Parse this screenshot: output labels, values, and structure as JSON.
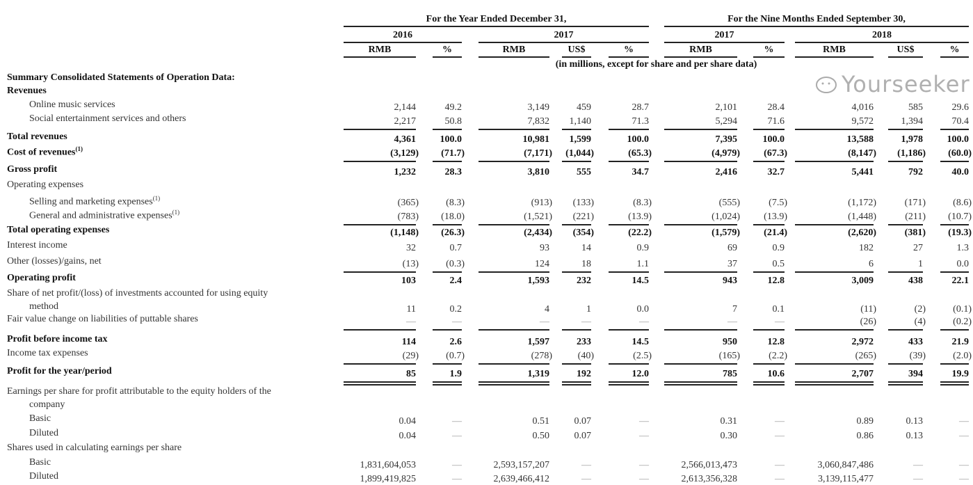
{
  "header": {
    "period_year": "For the Year Ended December 31,",
    "period_nine": "For the Nine Months Ended September 30,",
    "years": [
      "2016",
      "2017",
      "2017",
      "2018"
    ],
    "columns": [
      "RMB",
      "%",
      "RMB",
      "US$",
      "%",
      "RMB",
      "%",
      "RMB",
      "US$",
      "%"
    ],
    "unit_note": "(in millions, except for share and per share data)"
  },
  "rows": [
    {
      "label": "Summary Consolidated Statements of Operation Data:",
      "bold": true,
      "indent": 0,
      "values": []
    },
    {
      "label": "Revenues",
      "bold": true,
      "indent": 0,
      "values": []
    },
    {
      "label": "Online music services",
      "bold": false,
      "indent": 1,
      "values": [
        "2,144",
        "49.2",
        "3,149",
        "459",
        "28.7",
        "2,101",
        "28.4",
        "4,016",
        "585",
        "29.6"
      ]
    },
    {
      "label": "Social entertainment services and others",
      "bold": false,
      "indent": 1,
      "underline": "single",
      "values": [
        "2,217",
        "50.8",
        "7,832",
        "1,140",
        "71.3",
        "5,294",
        "71.6",
        "9,572",
        "1,394",
        "70.4"
      ]
    },
    {
      "label": "Total revenues",
      "bold": true,
      "indent": 0,
      "values": [
        "4,361",
        "100.0",
        "10,981",
        "1,599",
        "100.0",
        "7,395",
        "100.0",
        "13,588",
        "1,978",
        "100.0"
      ]
    },
    {
      "label": "Cost of revenues",
      "sup": "(1)",
      "bold": true,
      "indent": 0,
      "underline": "single",
      "values": [
        "(3,129)",
        "(71.7)",
        "(7,171)",
        "(1,044)",
        "(65.3)",
        "(4,979)",
        "(67.3)",
        "(8,147)",
        "(1,186)",
        "(60.0)"
      ]
    },
    {
      "label": "Gross profit",
      "bold": true,
      "indent": 0,
      "values": [
        "1,232",
        "28.3",
        "3,810",
        "555",
        "34.7",
        "2,416",
        "32.7",
        "5,441",
        "792",
        "40.0"
      ]
    },
    {
      "label": "Operating expenses",
      "bold": false,
      "indent": 0,
      "values": []
    },
    {
      "label": "Selling and marketing expenses",
      "sup": "(1)",
      "bold": false,
      "indent": 1,
      "values": [
        "(365)",
        "(8.3)",
        "(913)",
        "(133)",
        "(8.3)",
        "(555)",
        "(7.5)",
        "(1,172)",
        "(171)",
        "(8.6)"
      ]
    },
    {
      "label": "General and administrative expenses",
      "sup": "(1)",
      "bold": false,
      "indent": 1,
      "underline": "single",
      "values": [
        "(783)",
        "(18.0)",
        "(1,521)",
        "(221)",
        "(13.9)",
        "(1,024)",
        "(13.9)",
        "(1,448)",
        "(211)",
        "(10.7)"
      ]
    },
    {
      "label": "Total operating expenses",
      "bold": true,
      "indent": 0,
      "values": [
        "(1,148)",
        "(26.3)",
        "(2,434)",
        "(354)",
        "(22.2)",
        "(1,579)",
        "(21.4)",
        "(2,620)",
        "(381)",
        "(19.3)"
      ]
    },
    {
      "label": "Interest income",
      "bold": false,
      "indent": 0,
      "values": [
        "32",
        "0.7",
        "93",
        "14",
        "0.9",
        "69",
        "0.9",
        "182",
        "27",
        "1.3"
      ]
    },
    {
      "label": "Other (losses)/gains, net",
      "bold": false,
      "indent": 0,
      "underline": "single",
      "values": [
        "(13)",
        "(0.3)",
        "124",
        "18",
        "1.1",
        "37",
        "0.5",
        "6",
        "1",
        "0.0"
      ]
    },
    {
      "label": "Operating profit",
      "bold": true,
      "indent": 0,
      "values": [
        "103",
        "2.4",
        "1,593",
        "232",
        "14.5",
        "943",
        "12.8",
        "3,009",
        "438",
        "22.1"
      ]
    },
    {
      "label": "Share of net profit/(loss) of investments accounted for using equity",
      "label2": "method",
      "bold": false,
      "indent": 0,
      "values": [
        "11",
        "0.2",
        "4",
        "1",
        "0.0",
        "7",
        "0.1",
        "(11)",
        "(2)",
        "(0.1)"
      ]
    },
    {
      "label": "Fair value change on liabilities of puttable shares",
      "bold": false,
      "indent": 0,
      "underline": "single",
      "values": [
        "—",
        "—",
        "—",
        "—",
        "—",
        "—",
        "—",
        "(26)",
        "(4)",
        "(0.2)"
      ]
    },
    {
      "label": "Profit before income tax",
      "bold": true,
      "indent": 0,
      "values": [
        "114",
        "2.6",
        "1,597",
        "233",
        "14.5",
        "950",
        "12.8",
        "2,972",
        "433",
        "21.9"
      ]
    },
    {
      "label": "Income tax expenses",
      "bold": false,
      "indent": 0,
      "underline": "single",
      "values": [
        "(29)",
        "(0.7)",
        "(278)",
        "(40)",
        "(2.5)",
        "(165)",
        "(2.2)",
        "(265)",
        "(39)",
        "(2.0)"
      ]
    },
    {
      "label": "Profit for the year/period",
      "bold": true,
      "indent": 0,
      "underline": "double",
      "values": [
        "85",
        "1.9",
        "1,319",
        "192",
        "12.0",
        "785",
        "10.6",
        "2,707",
        "394",
        "19.9"
      ]
    },
    {
      "label": "Earnings per share for profit attributable to the equity holders of the",
      "label2": "company",
      "bold": false,
      "indent": 0,
      "values": []
    },
    {
      "label": "Basic",
      "bold": false,
      "indent": 1,
      "values": [
        "0.04",
        "—",
        "0.51",
        "0.07",
        "—",
        "0.31",
        "—",
        "0.89",
        "0.13",
        "—"
      ]
    },
    {
      "label": "Diluted",
      "bold": false,
      "indent": 1,
      "values": [
        "0.04",
        "—",
        "0.50",
        "0.07",
        "—",
        "0.30",
        "—",
        "0.86",
        "0.13",
        "—"
      ]
    },
    {
      "label": "Shares used in calculating earnings per share",
      "bold": false,
      "indent": 0,
      "values": []
    },
    {
      "label": "Basic",
      "bold": false,
      "indent": 1,
      "values": [
        "1,831,604,053",
        "—",
        "2,593,157,207",
        "—",
        "—",
        "2,566,013,473",
        "—",
        "3,060,847,486",
        "—",
        "—"
      ]
    },
    {
      "label": "Diluted",
      "bold": false,
      "indent": 1,
      "values": [
        "1,899,419,825",
        "—",
        "2,639,466,412",
        "—",
        "—",
        "2,613,356,328",
        "—",
        "3,139,115,477",
        "—",
        "—"
      ]
    }
  ],
  "watermark": {
    "text": "Yourseeker",
    "icon": "wechat-icon"
  }
}
